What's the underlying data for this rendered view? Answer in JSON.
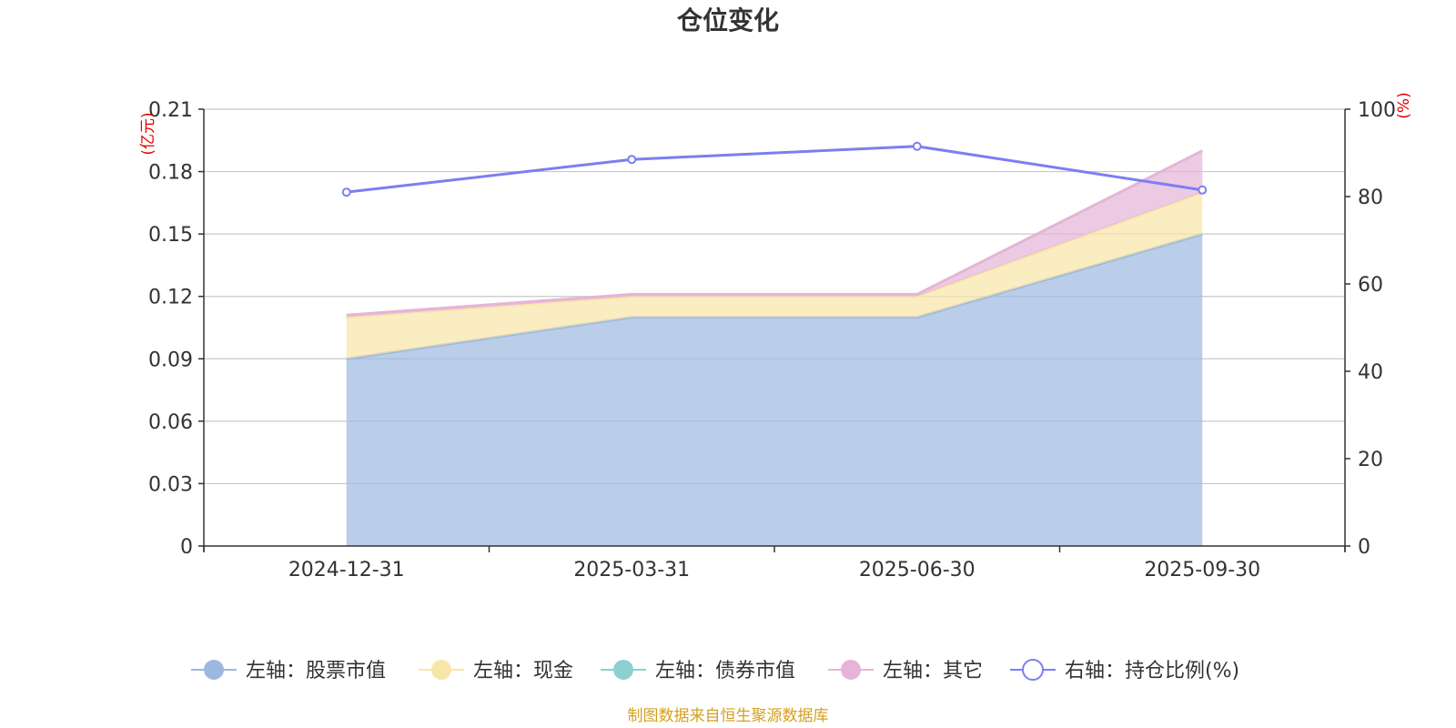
{
  "chart_data": {
    "type": "area",
    "title": "仓位变化",
    "categories": [
      "2024-12-31",
      "2025-03-31",
      "2025-06-30",
      "2025-09-30"
    ],
    "left_axis": {
      "unit": "(亿元)",
      "ylim": [
        0,
        0.21
      ],
      "ticks": [
        "0",
        "0.03",
        "0.06",
        "0.09",
        "0.12",
        "0.15",
        "0.18",
        "0.21"
      ]
    },
    "right_axis": {
      "unit": "(%)",
      "ylim": [
        0,
        100
      ],
      "ticks": [
        "0",
        "20",
        "40",
        "60",
        "80",
        "100"
      ]
    },
    "series": [
      {
        "name": "左轴：股票市值",
        "axis": "left",
        "kind": "area",
        "stacked": true,
        "color": "#9db8e0",
        "values": [
          0.09,
          0.11,
          0.11,
          0.15
        ]
      },
      {
        "name": "左轴：现金",
        "axis": "left",
        "kind": "area",
        "stacked": true,
        "color": "#f8e6a8",
        "values": [
          0.02,
          0.01,
          0.01,
          0.02
        ]
      },
      {
        "name": "左轴：债券市值",
        "axis": "left",
        "kind": "area",
        "stacked": true,
        "color": "#8ed0d0",
        "values": [
          0,
          0,
          0,
          0
        ]
      },
      {
        "name": "左轴：其它",
        "axis": "left",
        "kind": "area",
        "stacked": true,
        "color": "#e6b4d8",
        "values": [
          0.001,
          0.001,
          0.001,
          0.02
        ]
      },
      {
        "name": "右轴：持仓比例(%)",
        "axis": "right",
        "kind": "line",
        "color": "#7b7ff0",
        "values": [
          81,
          88.5,
          91.5,
          81.5
        ]
      }
    ],
    "grid": true,
    "legend_position": "bottom"
  },
  "footer": {
    "source": "制图数据来自恒生聚源数据库"
  }
}
